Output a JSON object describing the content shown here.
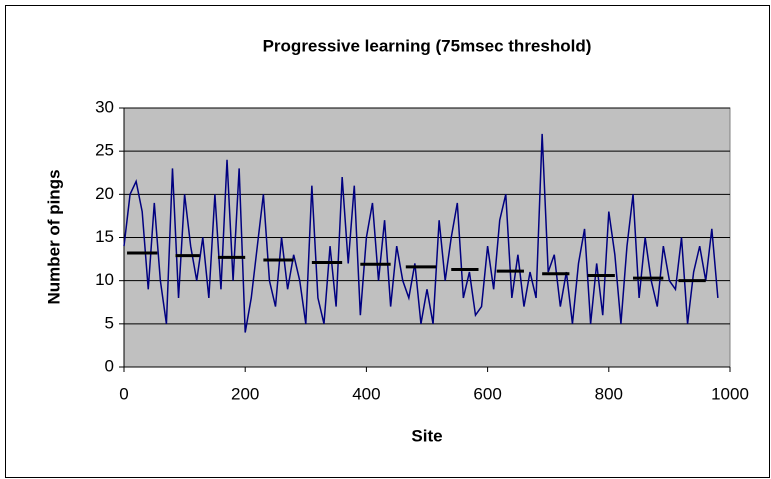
{
  "chart_data": {
    "type": "line",
    "title": "Progressive learning (75msec threshold)",
    "x_label": "Site",
    "y_label": "Number of pings",
    "xlim": [
      0,
      1000
    ],
    "xticks": [
      0,
      200,
      400,
      600,
      800,
      1000
    ],
    "ylim": [
      0,
      30
    ],
    "yticks": [
      0,
      5,
      10,
      15,
      20,
      25,
      30
    ],
    "grid": true,
    "background": "#c0c0c0",
    "series": [
      {
        "color": "#000080",
        "x": [
          0,
          10,
          20,
          30,
          40,
          50,
          60,
          70,
          80,
          90,
          100,
          110,
          120,
          130,
          140,
          150,
          160,
          170,
          180,
          190,
          200,
          210,
          220,
          230,
          240,
          250,
          260,
          270,
          280,
          290,
          300,
          310,
          320,
          330,
          340,
          350,
          360,
          370,
          380,
          390,
          400,
          410,
          420,
          430,
          440,
          450,
          460,
          470,
          480,
          490,
          500,
          510,
          520,
          530,
          540,
          550,
          560,
          570,
          580,
          590,
          600,
          610,
          620,
          630,
          640,
          650,
          660,
          670,
          680,
          690,
          700,
          710,
          720,
          730,
          740,
          750,
          760,
          770,
          780,
          790,
          800,
          810,
          820,
          830,
          840,
          850,
          860,
          870,
          880,
          890,
          900,
          910,
          920,
          930,
          940,
          950,
          960,
          970,
          980
        ],
        "values": [
          14,
          20,
          21.5,
          18,
          9,
          19,
          10,
          5,
          23,
          8,
          20,
          14,
          10,
          15,
          8,
          20,
          9,
          24,
          10,
          23,
          4,
          8,
          14,
          20,
          10,
          7,
          15,
          9,
          13,
          10,
          5,
          21,
          8,
          5,
          14,
          7,
          22,
          12,
          21,
          6,
          15,
          19,
          10,
          17,
          7,
          14,
          10,
          8,
          12,
          5,
          9,
          5,
          17,
          10,
          15,
          19,
          8,
          11,
          6,
          7,
          14,
          9,
          17,
          20,
          8,
          13,
          7,
          11,
          8,
          27,
          11,
          13,
          7,
          11,
          5,
          12,
          16,
          5,
          12,
          6,
          18,
          13,
          5,
          14,
          20,
          8,
          15,
          10,
          7,
          14,
          10,
          9,
          15,
          5,
          11,
          14,
          10,
          16,
          8
        ]
      },
      {
        "color": "#000000",
        "x": [
          5,
          55,
          70,
          85,
          125,
          140,
          155,
          200,
          215,
          230,
          280,
          295,
          310,
          360,
          375,
          390,
          440,
          452,
          465,
          515,
          528,
          540,
          585,
          600,
          615,
          660,
          675,
          690,
          735,
          750,
          765,
          810,
          825,
          840,
          890,
          903,
          915,
          960
        ],
        "values": [
          13.2,
          13.2,
          null,
          12.9,
          12.9,
          null,
          12.7,
          12.7,
          null,
          12.4,
          12.4,
          null,
          12.1,
          12.1,
          null,
          11.9,
          11.9,
          null,
          11.6,
          11.6,
          null,
          11.3,
          11.3,
          null,
          11.1,
          11.1,
          null,
          10.8,
          10.8,
          null,
          10.6,
          10.6,
          null,
          10.3,
          10.3,
          null,
          10.0,
          10.0
        ]
      }
    ]
  }
}
